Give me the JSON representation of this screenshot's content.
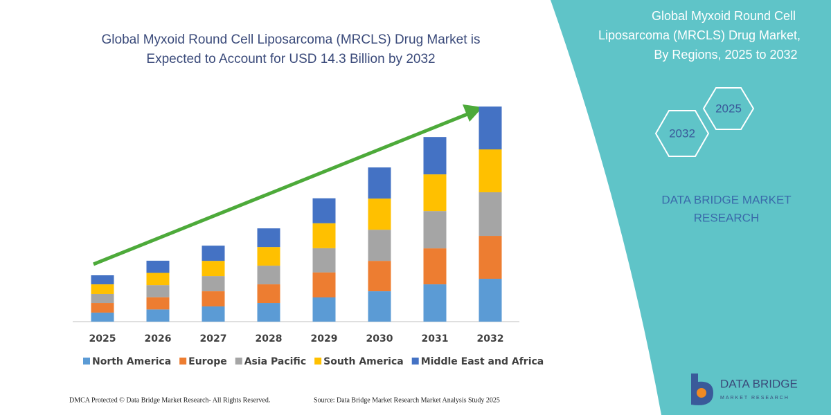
{
  "chart_data": {
    "type": "stacked_bar",
    "title": [
      "Global Myxoid Round Cell Liposarcoma (MRCLS) Drug Market is",
      "Expected to Account for USD 14.3 Billion by 2032"
    ],
    "categories": [
      "2025",
      "2026",
      "2027",
      "2028",
      "2029",
      "2030",
      "2031",
      "2032"
    ],
    "series": [
      {
        "name": "North America",
        "color": "#5b9bd5",
        "values": [
          0.6,
          0.81,
          1.01,
          1.24,
          1.61,
          2.02,
          2.48,
          2.85
        ]
      },
      {
        "name": "Europe",
        "color": "#ed7d31",
        "values": [
          0.64,
          0.81,
          1.01,
          1.24,
          1.66,
          2.02,
          2.39,
          2.85
        ]
      },
      {
        "name": "Asia Pacific",
        "color": "#a5a5a5",
        "values": [
          0.6,
          0.81,
          1.01,
          1.24,
          1.61,
          2.07,
          2.48,
          2.9
        ]
      },
      {
        "name": "South America",
        "color": "#ffc000",
        "values": [
          0.64,
          0.81,
          1.01,
          1.24,
          1.66,
          2.07,
          2.44,
          2.85
        ]
      },
      {
        "name": "Middle East and Africa",
        "color": "#4472c4",
        "values": [
          0.6,
          0.81,
          1.01,
          1.24,
          1.66,
          2.07,
          2.48,
          2.85
        ]
      }
    ],
    "legend": "bottom"
  },
  "panel": {
    "title": [
      "Global Myxoid Round Cell",
      "Liposarcoma (MRCLS) Drug Market,",
      "By Regions, 2025 to 2032"
    ],
    "hexagons": [
      "2032",
      "2025"
    ],
    "brand": [
      "DATA BRIDGE MARKET",
      "RESEARCH"
    ]
  },
  "logo": {
    "name": "DATA BRIDGE",
    "tagline": "MARKET RESEARCH"
  },
  "footer": {
    "left": "DMCA Protected © Data Bridge Market Research- All Rights Reserved.",
    "right": "Source: Data Bridge Market Research  Market Analysis Study 2025"
  }
}
